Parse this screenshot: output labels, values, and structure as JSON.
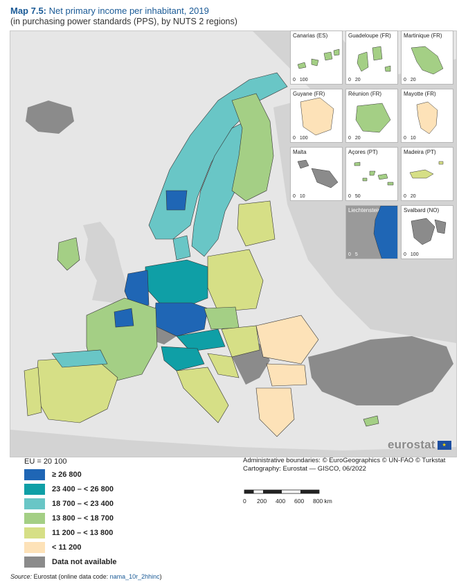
{
  "header": {
    "map_number": "Map 7.5:",
    "title": "Net primary income per inhabitant, 2019",
    "subtitle": "(in purchasing power standards (PPS), by NUTS 2 regions)"
  },
  "insets": [
    {
      "label": "Canarias (ES)",
      "scale": [
        "0",
        "100"
      ]
    },
    {
      "label": "Guadeloupe (FR)",
      "scale": [
        "0",
        "20"
      ]
    },
    {
      "label": "Martinique (FR)",
      "scale": [
        "0",
        "20"
      ]
    },
    {
      "label": "Guyane (FR)",
      "scale": [
        "0",
        "100"
      ]
    },
    {
      "label": "Réunion (FR)",
      "scale": [
        "0",
        "20"
      ]
    },
    {
      "label": "Mayotte (FR)",
      "scale": [
        "0",
        "10"
      ]
    },
    {
      "label": "Malta",
      "scale": [
        "0",
        "10"
      ]
    },
    {
      "label": "Açores (PT)",
      "scale": [
        "0",
        "50"
      ]
    },
    {
      "label": "Madeira (PT)",
      "scale": [
        "0",
        "20"
      ]
    },
    {
      "label": "Liechtenstein",
      "scale": [
        "0",
        "5"
      ]
    },
    {
      "label": "Svalbard (NO)",
      "scale": [
        "0",
        "100"
      ]
    }
  ],
  "logo": {
    "text": "eurostat"
  },
  "legend": {
    "eu_average": "EU = 20 100",
    "items": [
      {
        "label": "≥ 26 800",
        "color": "#1f66b5"
      },
      {
        "label": "23 400 – < 26 800",
        "color": "#0f9fa6"
      },
      {
        "label": "18 700 – < 23 400",
        "color": "#69c6c6"
      },
      {
        "label": "13 800 – < 18 700",
        "color": "#a4cf85"
      },
      {
        "label": "11 200 – < 13 800",
        "color": "#d6df86"
      },
      {
        "label": "< 11 200",
        "color": "#fde2b8"
      },
      {
        "label": "Data not available",
        "color": "#8b8b8b"
      }
    ]
  },
  "credits": {
    "line1": "Administrative boundaries: © EuroGeographics © UN-FAO © Turkstat",
    "line2": "Cartography: Eurostat — GISCO, 06/2022"
  },
  "scale_bar": {
    "ticks": [
      "0",
      "200",
      "400",
      "600",
      "800 km"
    ]
  },
  "source": {
    "label": "Source:",
    "text": " Eurostat (online data code: ",
    "code": "nama_10r_2hhinc",
    "close": ")"
  },
  "colors": {
    "background_land": "#d3d3d3",
    "sea": "#e6e6e6",
    "accent": "#1a5a96"
  }
}
